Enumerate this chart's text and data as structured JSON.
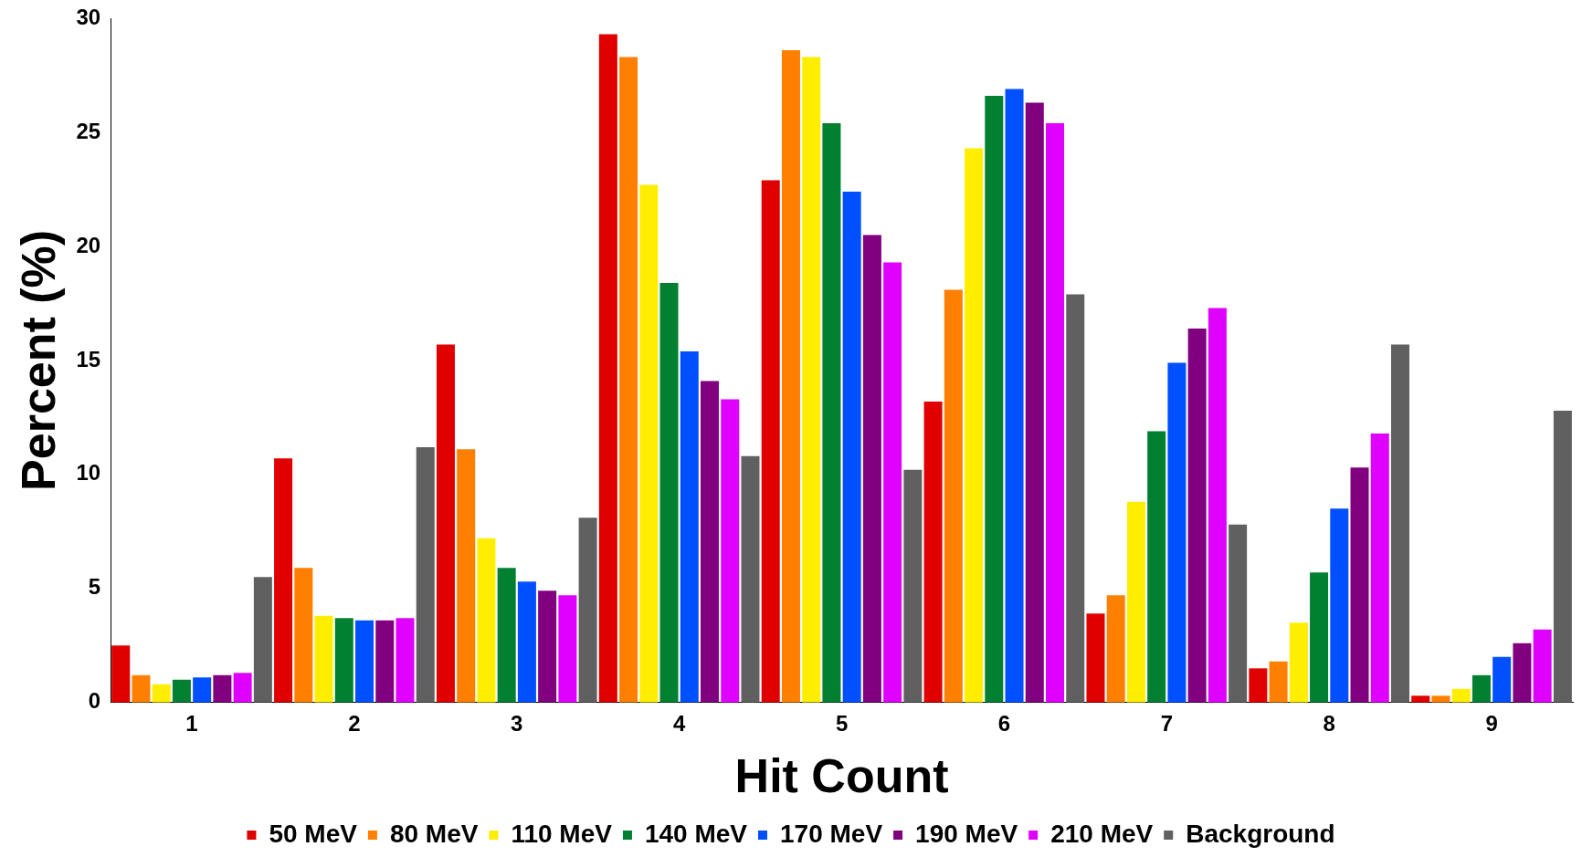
{
  "chart_data": {
    "type": "bar",
    "xlabel": "Hit Count",
    "ylabel": "Percent (%)",
    "categories": [
      "1",
      "2",
      "3",
      "4",
      "5",
      "6",
      "7",
      "8",
      "9"
    ],
    "series": [
      {
        "name": "50 MeV",
        "color": "#e00000",
        "values": [
          2.5,
          10.7,
          15.7,
          29.3,
          22.9,
          13.2,
          3.9,
          1.5,
          0.3
        ]
      },
      {
        "name": "80 MeV",
        "color": "#ff8000",
        "values": [
          1.2,
          5.9,
          11.1,
          28.3,
          28.6,
          18.1,
          4.7,
          1.8,
          0.3
        ]
      },
      {
        "name": "110 MeV",
        "color": "#ffee00",
        "values": [
          0.8,
          3.8,
          7.2,
          22.7,
          28.3,
          24.3,
          8.8,
          3.5,
          0.6
        ]
      },
      {
        "name": "140 MeV",
        "color": "#008030",
        "values": [
          1.0,
          3.7,
          5.9,
          18.4,
          25.4,
          26.6,
          11.9,
          5.7,
          1.2
        ]
      },
      {
        "name": "170 MeV",
        "color": "#0050ff",
        "values": [
          1.1,
          3.6,
          5.3,
          15.4,
          22.4,
          26.9,
          14.9,
          8.5,
          2.0
        ]
      },
      {
        "name": "190 MeV",
        "color": "#800080",
        "values": [
          1.2,
          3.6,
          4.9,
          14.1,
          20.5,
          26.3,
          16.4,
          10.3,
          2.6
        ]
      },
      {
        "name": "210 MeV",
        "color": "#e000ff",
        "values": [
          1.3,
          3.7,
          4.7,
          13.3,
          19.3,
          25.4,
          17.3,
          11.8,
          3.2
        ]
      },
      {
        "name": "Background",
        "color": "#606060",
        "values": [
          5.5,
          11.2,
          8.1,
          10.8,
          10.2,
          17.9,
          7.8,
          15.7,
          12.8
        ]
      }
    ],
    "ylim": [
      0,
      30
    ],
    "yticks": [
      0,
      5,
      10,
      15,
      20,
      25,
      30
    ],
    "legend": "bottom"
  }
}
